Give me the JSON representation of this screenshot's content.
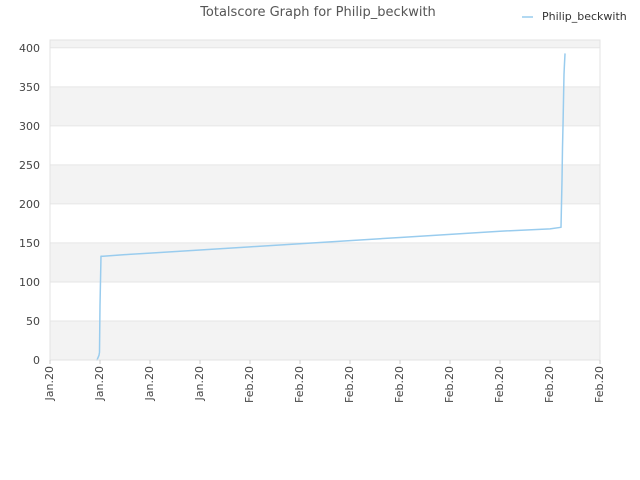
{
  "chart_data": {
    "type": "line",
    "title": "Totalscore Graph for Philip_beckwith",
    "xlabel": "",
    "ylabel": "",
    "legend_position": "top-right",
    "x_ticks": [
      "Jan.20",
      "Jan.20",
      "Jan.20",
      "Jan.20",
      "Feb.20",
      "Feb.20",
      "Feb.20",
      "Feb.20",
      "Feb.20",
      "Feb.20",
      "Feb.20",
      "Feb.20"
    ],
    "ylim": [
      0,
      410
    ],
    "yticks": [
      0,
      50,
      100,
      150,
      200,
      250,
      300,
      350,
      400
    ],
    "xlim": [
      0,
      11
    ],
    "grid": true,
    "series": [
      {
        "name": "Philip_beckwith",
        "color": "#99ccee",
        "x": [
          0.94,
          0.98,
          0.99,
          1.0,
          1.02,
          1.04,
          1.06,
          1.5,
          2.0,
          3.0,
          4.0,
          5.0,
          6.0,
          7.0,
          8.0,
          9.0,
          10.0,
          10.22,
          10.24,
          10.25,
          10.26,
          10.28,
          10.29,
          10.3
        ],
        "values": [
          0,
          6,
          10,
          70,
          133,
          133,
          133,
          135,
          137,
          141,
          145,
          149,
          153,
          157,
          161,
          165,
          168,
          170,
          230,
          272,
          300,
          366,
          380,
          392
        ]
      }
    ]
  }
}
